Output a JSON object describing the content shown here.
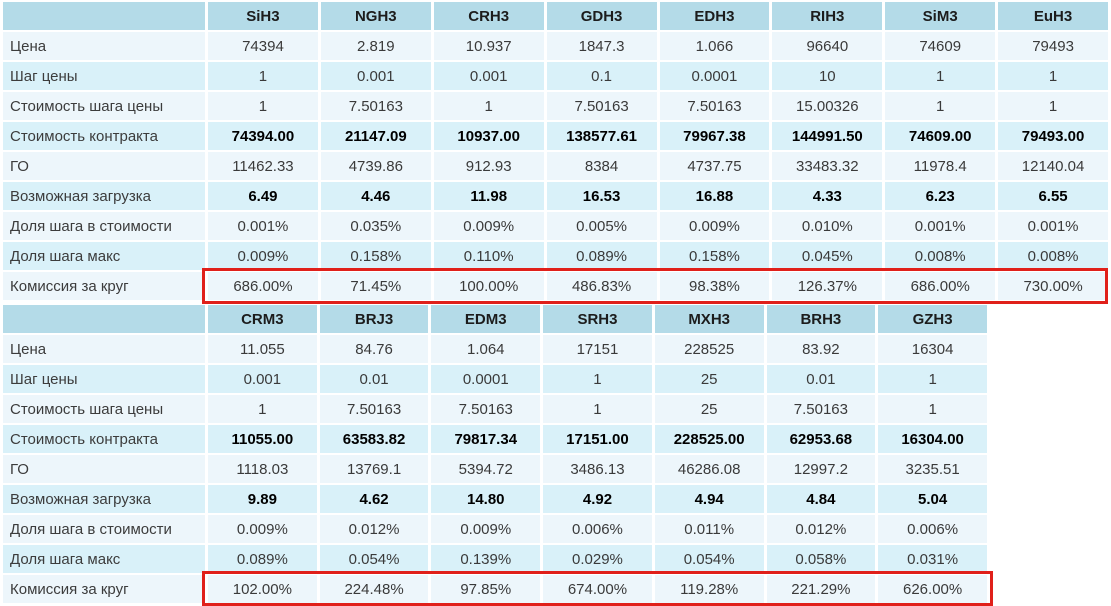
{
  "colors": {
    "header_bg": "#b4dbe8",
    "row_pale": "#edf6fb",
    "row_cyan": "#d9f1f9",
    "highlight_border": "#e0201a"
  },
  "tables": [
    {
      "name": "futures-table-1",
      "columns": [
        "SiH3",
        "NGH3",
        "CRH3",
        "GDH3",
        "EDH3",
        "RIH3",
        "SiM3",
        "EuH3"
      ],
      "rows": [
        {
          "label": "Цена",
          "bold": false,
          "values": [
            "74394",
            "2.819",
            "10.937",
            "1847.3",
            "1.066",
            "96640",
            "74609",
            "79493"
          ]
        },
        {
          "label": "Шаг цены",
          "bold": false,
          "values": [
            "1",
            "0.001",
            "0.001",
            "0.1",
            "0.0001",
            "10",
            "1",
            "1"
          ]
        },
        {
          "label": "Стоимость шага цены",
          "bold": false,
          "values": [
            "1",
            "7.50163",
            "1",
            "7.50163",
            "7.50163",
            "15.00326",
            "1",
            "1"
          ]
        },
        {
          "label": "Стоимость контракта",
          "bold": true,
          "values": [
            "74394.00",
            "21147.09",
            "10937.00",
            "138577.61",
            "79967.38",
            "144991.50",
            "74609.00",
            "79493.00"
          ]
        },
        {
          "label": "ГО",
          "bold": false,
          "values": [
            "11462.33",
            "4739.86",
            "912.93",
            "8384",
            "4737.75",
            "33483.32",
            "11978.4",
            "12140.04"
          ]
        },
        {
          "label": "Возможная загрузка",
          "bold": true,
          "values": [
            "6.49",
            "4.46",
            "11.98",
            "16.53",
            "16.88",
            "4.33",
            "6.23",
            "6.55"
          ]
        },
        {
          "label": "Доля шага в стоимости",
          "bold": false,
          "values": [
            "0.001%",
            "0.035%",
            "0.009%",
            "0.005%",
            "0.009%",
            "0.010%",
            "0.001%",
            "0.001%"
          ]
        },
        {
          "label": "Доля шага макс",
          "bold": false,
          "values": [
            "0.009%",
            "0.158%",
            "0.110%",
            "0.089%",
            "0.158%",
            "0.045%",
            "0.008%",
            "0.008%"
          ]
        },
        {
          "label": "Комиссия за круг",
          "bold": false,
          "highlighted": true,
          "values": [
            "686.00%",
            "71.45%",
            "100.00%",
            "486.83%",
            "98.38%",
            "126.37%",
            "686.00%",
            "730.00%"
          ]
        }
      ]
    },
    {
      "name": "futures-table-2",
      "columns": [
        "CRM3",
        "BRJ3",
        "EDM3",
        "SRH3",
        "MXH3",
        "BRH3",
        "GZH3"
      ],
      "rows": [
        {
          "label": "Цена",
          "bold": false,
          "values": [
            "11.055",
            "84.76",
            "1.064",
            "17151",
            "228525",
            "83.92",
            "16304"
          ]
        },
        {
          "label": "Шаг цены",
          "bold": false,
          "values": [
            "0.001",
            "0.01",
            "0.0001",
            "1",
            "25",
            "0.01",
            "1"
          ]
        },
        {
          "label": "Стоимость шага цены",
          "bold": false,
          "values": [
            "1",
            "7.50163",
            "7.50163",
            "1",
            "25",
            "7.50163",
            "1"
          ]
        },
        {
          "label": "Стоимость контракта",
          "bold": true,
          "values": [
            "11055.00",
            "63583.82",
            "79817.34",
            "17151.00",
            "228525.00",
            "62953.68",
            "16304.00"
          ]
        },
        {
          "label": "ГО",
          "bold": false,
          "values": [
            "1118.03",
            "13769.1",
            "5394.72",
            "3486.13",
            "46286.08",
            "12997.2",
            "3235.51"
          ]
        },
        {
          "label": "Возможная загрузка",
          "bold": true,
          "values": [
            "9.89",
            "4.62",
            "14.80",
            "4.92",
            "4.94",
            "4.84",
            "5.04"
          ]
        },
        {
          "label": "Доля шага в стоимости",
          "bold": false,
          "values": [
            "0.009%",
            "0.012%",
            "0.009%",
            "0.006%",
            "0.011%",
            "0.012%",
            "0.006%"
          ]
        },
        {
          "label": "Доля шага макс",
          "bold": false,
          "values": [
            "0.089%",
            "0.054%",
            "0.139%",
            "0.029%",
            "0.054%",
            "0.058%",
            "0.031%"
          ]
        },
        {
          "label": "Комиссия за круг",
          "bold": false,
          "highlighted": true,
          "values": [
            "102.00%",
            "224.48%",
            "97.85%",
            "674.00%",
            "119.28%",
            "221.29%",
            "626.00%"
          ]
        }
      ]
    }
  ]
}
